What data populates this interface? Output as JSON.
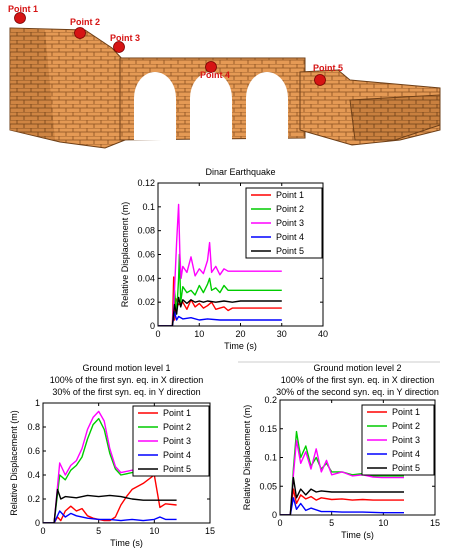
{
  "figure": {
    "point_labels": [
      "Point 1",
      "Point 2",
      "Point 3",
      "Point 4",
      "Point 5"
    ],
    "colors": {
      "brick": "#e59a55",
      "brick_dark": "#b76a2c",
      "brick_mortar": "#6e3f17",
      "marker": "#d61414"
    }
  },
  "chart_data": [
    {
      "type": "line",
      "title": [
        "Dinar Earthquake"
      ],
      "xlabel": "Time (s)",
      "ylabel": "Relative Displacement (m)",
      "xlim": [
        0,
        40
      ],
      "ylim": [
        0,
        0.12
      ],
      "xticks": [
        0,
        10,
        20,
        30,
        40
      ],
      "yticks": [
        0,
        0.02,
        0.04,
        0.06,
        0.08,
        0.1,
        0.12
      ],
      "ytick_labels": [
        "0",
        "0.02",
        "0.04",
        "0.06",
        "0.08",
        "0.1",
        "0.12"
      ],
      "grid": false,
      "legend": "top-right",
      "series": [
        {
          "name": "Point 1",
          "color": "#ff0000",
          "x": [
            0,
            3.5,
            3.8,
            4.0,
            4.3,
            5.0,
            6.0,
            7.0,
            8.0,
            9.0,
            10.0,
            11.0,
            12.0,
            13.0,
            14.0,
            15.0,
            16.0,
            17.0,
            18.0,
            20.0,
            25.0,
            30.0
          ],
          "y": [
            0,
            0,
            0.041,
            0.005,
            0.023,
            0.018,
            0.02,
            0.014,
            0.022,
            0.016,
            0.019,
            0.015,
            0.017,
            0.02,
            0.014,
            0.015,
            0.016,
            0.013,
            0.015,
            0.015,
            0.015,
            0.015
          ]
        },
        {
          "name": "Point 2",
          "color": "#00cc00",
          "x": [
            0,
            3.5,
            4.0,
            4.5,
            5.0,
            5.2,
            5.5,
            6.0,
            7.0,
            8.0,
            9.0,
            10.0,
            11.0,
            12.0,
            12.5,
            13.0,
            14.0,
            15.0,
            16.0,
            17.0,
            18.0,
            20.0,
            25.0,
            30.0
          ],
          "y": [
            0,
            0,
            0.03,
            0.01,
            0.04,
            0.06,
            0.02,
            0.033,
            0.028,
            0.03,
            0.026,
            0.034,
            0.028,
            0.035,
            0.04,
            0.03,
            0.032,
            0.028,
            0.034,
            0.03,
            0.03,
            0.03,
            0.03,
            0.03
          ]
        },
        {
          "name": "Point 3",
          "color": "#ff00ff",
          "x": [
            0,
            3.5,
            4.0,
            4.5,
            5.0,
            5.3,
            5.6,
            6.0,
            7.0,
            8.0,
            9.0,
            10.0,
            11.0,
            12.0,
            12.5,
            13.0,
            14.0,
            15.0,
            16.0,
            17.0,
            18.0,
            20.0,
            25.0,
            30.0
          ],
          "y": [
            0,
            0,
            0.03,
            0.07,
            0.102,
            0.06,
            0.04,
            0.05,
            0.045,
            0.058,
            0.042,
            0.048,
            0.044,
            0.055,
            0.07,
            0.045,
            0.05,
            0.043,
            0.048,
            0.046,
            0.046,
            0.046,
            0.046,
            0.046
          ]
        },
        {
          "name": "Point 4",
          "color": "#0000ff",
          "x": [
            0,
            3.5,
            4.0,
            4.5,
            5.0,
            6.0,
            8.0,
            10.0,
            12.0,
            15.0,
            20.0,
            25.0,
            30.0
          ],
          "y": [
            0,
            0,
            0.012,
            0.005,
            0.008,
            0.006,
            0.007,
            0.005,
            0.006,
            0.005,
            0.005,
            0.005,
            0.005
          ]
        },
        {
          "name": "Point 5",
          "color": "#000000",
          "x": [
            0,
            3.5,
            4.0,
            4.5,
            5.0,
            5.5,
            6.0,
            7.0,
            8.0,
            9.0,
            10.0,
            11.0,
            12.0,
            14.0,
            16.0,
            18.0,
            20.0,
            25.0,
            30.0
          ],
          "y": [
            0,
            0,
            0.018,
            0.01,
            0.024,
            0.016,
            0.022,
            0.019,
            0.022,
            0.02,
            0.021,
            0.02,
            0.021,
            0.02,
            0.021,
            0.02,
            0.021,
            0.021,
            0.021
          ]
        }
      ]
    },
    {
      "type": "line",
      "title": [
        "Ground motion level 1",
        "100% of the first syn. eq. in X direction",
        "30% of the first syn. eq. in Y direction"
      ],
      "xlabel": "Time (s)",
      "ylabel": "Relative Displacement (m)",
      "xlim": [
        0,
        15
      ],
      "ylim": [
        0,
        1
      ],
      "xticks": [
        0,
        5,
        10,
        15
      ],
      "yticks": [
        0,
        0.2,
        0.4,
        0.6,
        0.8,
        1
      ],
      "ytick_labels": [
        "0",
        "0.2",
        "0.4",
        "0.6",
        "0.8",
        "1"
      ],
      "grid": false,
      "legend": "top-right",
      "series": [
        {
          "name": "Point 1",
          "color": "#ff0000",
          "x": [
            0,
            1.0,
            1.3,
            1.6,
            2.0,
            2.5,
            3.0,
            3.5,
            4.0,
            4.5,
            5.0,
            5.5,
            6.0,
            6.5,
            7.0,
            7.5,
            8.0,
            9.0,
            10.0,
            10.5,
            11.0,
            12.0
          ],
          "y": [
            0,
            0,
            0.05,
            0.02,
            0.1,
            0.14,
            0.1,
            0.12,
            0.06,
            0.04,
            0.03,
            0.02,
            0.02,
            0.05,
            0.15,
            0.22,
            0.28,
            0.33,
            0.4,
            0.13,
            0.16,
            0.15
          ]
        },
        {
          "name": "Point 2",
          "color": "#00cc00",
          "x": [
            0,
            1.0,
            1.5,
            2.0,
            2.5,
            3.0,
            3.5,
            4.0,
            4.5,
            5.0,
            5.5,
            6.0,
            6.5,
            7.0,
            8.0,
            9.0,
            10.0,
            11.0,
            12.0
          ],
          "y": [
            0,
            0,
            0.4,
            0.36,
            0.44,
            0.48,
            0.55,
            0.7,
            0.82,
            0.87,
            0.78,
            0.58,
            0.45,
            0.4,
            0.42,
            0.44,
            0.47,
            0.45,
            0.44
          ]
        },
        {
          "name": "Point 3",
          "color": "#ff00ff",
          "x": [
            0,
            1.0,
            1.5,
            2.0,
            2.5,
            3.0,
            3.5,
            4.0,
            4.5,
            5.0,
            5.5,
            6.0,
            6.5,
            7.0,
            8.0,
            9.0,
            10.0,
            11.0,
            12.0
          ],
          "y": [
            0,
            0,
            0.5,
            0.4,
            0.48,
            0.52,
            0.62,
            0.78,
            0.88,
            0.93,
            0.85,
            0.62,
            0.47,
            0.42,
            0.44,
            0.46,
            0.5,
            0.47,
            0.46
          ]
        },
        {
          "name": "Point 4",
          "color": "#0000ff",
          "x": [
            0,
            1.0,
            1.5,
            2.0,
            2.5,
            3.0,
            4.0,
            5.0,
            6.0,
            7.0,
            8.0,
            9.0,
            10.0,
            10.5,
            11.0,
            12.0
          ],
          "y": [
            0,
            0,
            0.1,
            0.05,
            0.08,
            0.06,
            0.04,
            0.03,
            0.03,
            0.02,
            0.03,
            0.02,
            0.03,
            0.05,
            0.03,
            0.03
          ]
        },
        {
          "name": "Point 5",
          "color": "#000000",
          "x": [
            0,
            1.0,
            1.3,
            1.6,
            2.0,
            3.0,
            4.0,
            5.0,
            6.0,
            7.0,
            8.0,
            9.0,
            10.0,
            11.0,
            12.0
          ],
          "y": [
            0,
            0,
            0.28,
            0.2,
            0.22,
            0.21,
            0.23,
            0.22,
            0.23,
            0.22,
            0.2,
            0.19,
            0.19,
            0.19,
            0.19
          ]
        }
      ]
    },
    {
      "type": "line",
      "title": [
        "Ground motion level 2",
        "100% of the first syn. eq. in X direction",
        "30% of the second syn. eq. in Y direction"
      ],
      "xlabel": "Time (s)",
      "ylabel": "Relative Displacement (m)",
      "xlim": [
        0,
        15
      ],
      "ylim": [
        0,
        0.2
      ],
      "xticks": [
        0,
        5,
        10,
        15
      ],
      "yticks": [
        0,
        0.05,
        0.1,
        0.15,
        0.2
      ],
      "ytick_labels": [
        "0",
        "0.05",
        "0.1",
        "0.15",
        "0.2"
      ],
      "grid": false,
      "legend": "top-right",
      "series": [
        {
          "name": "Point 1",
          "color": "#ff0000",
          "x": [
            0,
            1.0,
            1.3,
            1.6,
            2.0,
            2.5,
            3.0,
            3.5,
            4.0,
            5.0,
            6.0,
            7.0,
            8.0,
            9.0,
            10.0,
            11.0,
            12.0
          ],
          "y": [
            0,
            0,
            0.045,
            0.02,
            0.035,
            0.028,
            0.032,
            0.026,
            0.03,
            0.027,
            0.028,
            0.026,
            0.027,
            0.026,
            0.026,
            0.026,
            0.026
          ]
        },
        {
          "name": "Point 2",
          "color": "#00cc00",
          "x": [
            0,
            1.0,
            1.3,
            1.6,
            2.0,
            2.5,
            3.0,
            3.5,
            4.0,
            4.5,
            5.0,
            6.0,
            7.0,
            8.0,
            9.0,
            10.0,
            11.0,
            12.0
          ],
          "y": [
            0,
            0,
            0.08,
            0.145,
            0.1,
            0.12,
            0.085,
            0.1,
            0.08,
            0.09,
            0.075,
            0.075,
            0.07,
            0.072,
            0.068,
            0.068,
            0.068,
            0.068
          ]
        },
        {
          "name": "Point 3",
          "color": "#ff00ff",
          "x": [
            0,
            1.0,
            1.3,
            1.6,
            2.0,
            2.5,
            3.0,
            3.5,
            4.0,
            4.5,
            5.0,
            6.0,
            7.0,
            8.0,
            9.0,
            10.0,
            11.0,
            12.0
          ],
          "y": [
            0,
            0,
            0.07,
            0.13,
            0.09,
            0.11,
            0.08,
            0.115,
            0.075,
            0.095,
            0.07,
            0.075,
            0.068,
            0.07,
            0.066,
            0.065,
            0.065,
            0.065
          ]
        },
        {
          "name": "Point 4",
          "color": "#0000ff",
          "x": [
            0,
            1.0,
            1.3,
            1.6,
            2.0,
            2.5,
            3.0,
            4.0,
            5.0,
            6.0,
            8.0,
            10.0,
            12.0
          ],
          "y": [
            0,
            0,
            0.03,
            0.01,
            0.02,
            0.008,
            0.012,
            0.006,
            0.006,
            0.005,
            0.005,
            0.004,
            0.004
          ]
        },
        {
          "name": "Point 5",
          "color": "#000000",
          "x": [
            0,
            1.0,
            1.3,
            1.6,
            2.0,
            2.5,
            3.0,
            3.5,
            4.0,
            5.0,
            6.0,
            7.0,
            8.0,
            9.0,
            10.0,
            11.0,
            12.0
          ],
          "y": [
            0,
            0,
            0.065,
            0.03,
            0.045,
            0.035,
            0.045,
            0.04,
            0.042,
            0.04,
            0.04,
            0.04,
            0.04,
            0.04,
            0.04,
            0.04,
            0.04
          ]
        }
      ]
    }
  ]
}
